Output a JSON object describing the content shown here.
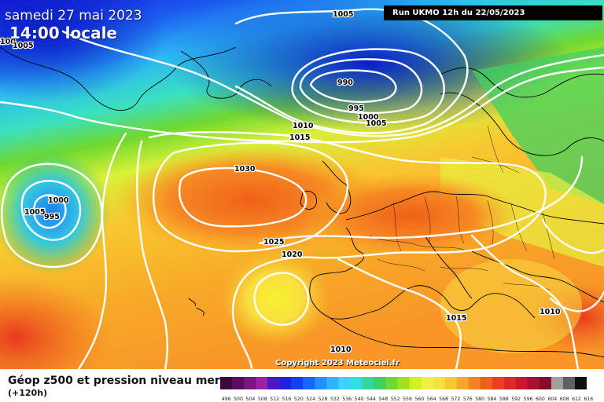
{
  "header": {
    "date": "samedi 27 mai 2023",
    "time": "14:00 locale",
    "run": "Run UKMO 12h du 22/05/2023"
  },
  "footer": {
    "title": "Géop z500 et pression niveau mer",
    "subtitle": "(+120h)",
    "copyright": "Copyright 2023 Meteociel.fr"
  },
  "isobar_labels": [
    "1005",
    "990",
    "995",
    "1000",
    "1005",
    "1010",
    "1015",
    "1030",
    "1000",
    "1005",
    "995",
    "1025",
    "1020",
    "1015",
    "1010",
    "1010",
    "100",
    "1005"
  ],
  "scale": {
    "labels": [
      "496",
      "500",
      "504",
      "508",
      "512",
      "516",
      "520",
      "524",
      "528",
      "532",
      "536",
      "540",
      "544",
      "548",
      "552",
      "556",
      "560",
      "564",
      "568",
      "572",
      "576",
      "580",
      "584",
      "588",
      "592",
      "596",
      "600",
      "604",
      "608",
      "612",
      "616"
    ],
    "colors": [
      "#3a0a3a",
      "#5a0f5e",
      "#7a167e",
      "#9a22a6",
      "#4a1ac0",
      "#2020e0",
      "#1040f0",
      "#1866f8",
      "#2090ff",
      "#30b4ff",
      "#40d0ff",
      "#30e0e0",
      "#30d8a0",
      "#40d060",
      "#70d830",
      "#a0e020",
      "#d0f020",
      "#f0f040",
      "#f8e040",
      "#f8c830",
      "#f8a828",
      "#f88020",
      "#f06018",
      "#e84020",
      "#e02828",
      "#c81830",
      "#a81030",
      "#880c28",
      "#a0a0a0",
      "#606060",
      "#101010"
    ]
  }
}
